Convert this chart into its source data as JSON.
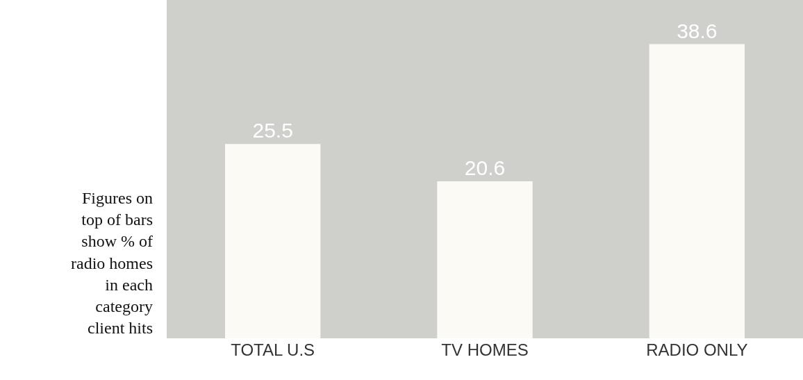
{
  "chart_data": {
    "type": "bar",
    "categories": [
      "TOTAL U.S",
      "TV HOMES",
      "RADIO ONLY"
    ],
    "values": [
      25.5,
      20.6,
      38.6
    ],
    "color": "#fbfaf5",
    "data_labels": true,
    "grid": false,
    "legend": false,
    "annotations": [
      "Figures on top of bars show % of radio homes in each category client hits"
    ]
  }
}
